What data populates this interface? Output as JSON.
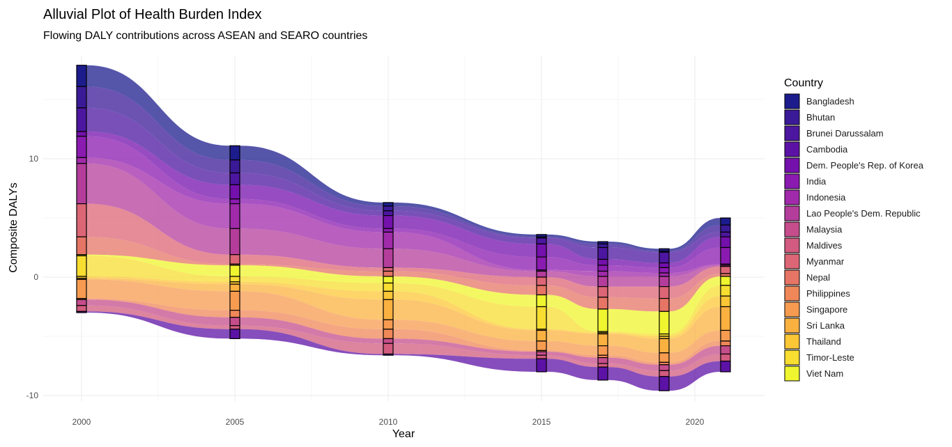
{
  "chart_data": {
    "type": "alluvial",
    "title": "Alluvial Plot of Health Burden Index",
    "subtitle": "Flowing DALY contributions across ASEAN and SEARO countries",
    "xlabel": "Year",
    "ylabel": "Composite DALYs",
    "x_ticks": [
      "2000",
      "2005",
      "2010",
      "2015",
      "2020"
    ],
    "x_tick_values": [
      2000,
      2005,
      2010,
      2015,
      2020
    ],
    "y_ticks": [
      "-10",
      "0",
      "10"
    ],
    "y_tick_values": [
      -10,
      0,
      10
    ],
    "xlim": [
      1998.7,
      2022.2
    ],
    "ylim": [
      -10.5,
      18.5
    ],
    "grid": true,
    "legend": {
      "title": "Country",
      "position": "right",
      "entries": [
        "Bangladesh",
        "Bhutan",
        "Brunei Darussalam",
        "Cambodia",
        "Dem. People's Rep. of Korea",
        "India",
        "Indonesia",
        "Lao People's Dem. Republic",
        "Malaysia",
        "Maldives",
        "Myanmar",
        "Nepal",
        "Philippines",
        "Singapore",
        "Sri Lanka",
        "Thailand",
        "Timor-Leste",
        "Viet Nam"
      ],
      "colors": [
        "#1c1c8d",
        "#3b1a98",
        "#4c16a0",
        "#5d12a6",
        "#7410ac",
        "#8a1ab0",
        "#a02aaa",
        "#b43d9c",
        "#c64d8c",
        "#d25b7f",
        "#dc6675",
        "#e67565",
        "#f08758",
        "#f79b50",
        "#fbb140",
        "#fcc737",
        "#f7de30",
        "#eff52e"
      ]
    },
    "years": [
      2000,
      2005,
      2010,
      2015,
      2017,
      2019,
      2021
    ],
    "stack_order_top_to_bottom": [
      "Bangladesh",
      "Bhutan",
      "Brunei Darussalam",
      "Dem. People's Rep. of Korea",
      "India",
      "Indonesia",
      "Lao People's Dem. Republic",
      "Myanmar",
      "Nepal",
      "Viet Nam",
      "Timor-Leste",
      "Thailand",
      "Sri Lanka",
      "Singapore",
      "Philippines",
      "Malaysia",
      "Maldives",
      "Cambodia"
    ],
    "stack_bottom": [
      -3.0,
      -5.2,
      -6.6,
      -8.0,
      -8.7,
      -9.6,
      -8.0
    ],
    "values_by_year": [
      [
        1.8,
        1.8,
        2.0,
        0.4,
        1.8,
        0.5,
        3.4,
        2.8,
        1.5,
        0.1,
        1.74,
        0.16,
        0.1,
        1.6,
        0.1,
        0.5,
        0.5,
        0.1
      ],
      [
        1.2,
        1.1,
        1.0,
        1.2,
        0.4,
        2.1,
        2.2,
        0.8,
        0.1,
        0.94,
        0.46,
        0.2,
        0.6,
        1.6,
        0.6,
        0.7,
        0.3,
        0.8
      ],
      [
        0.3,
        0.4,
        0.4,
        1.1,
        0.3,
        1.4,
        1.6,
        0.3,
        0.44,
        0.56,
        0.7,
        0.7,
        1.7,
        0.8,
        0.8,
        0.4,
        0.9,
        0.1
      ],
      [
        0.2,
        0.1,
        0.5,
        1.1,
        1.1,
        0.1,
        0.5,
        0.7,
        0.8,
        1.0,
        1.9,
        0.1,
        0.9,
        0.8,
        0.1,
        0.3,
        0.3,
        1.1
      ],
      [
        0.2,
        0.3,
        1.0,
        0.5,
        0.5,
        0.44,
        0.86,
        0.9,
        1.0,
        1.9,
        0.1,
        0.1,
        1.0,
        0.8,
        0.2,
        0.5,
        0.3,
        1.1
      ],
      [
        0.2,
        0.1,
        0.9,
        0.4,
        0.45,
        0.29,
        0.86,
        1.0,
        1.1,
        1.9,
        0.2,
        0.2,
        1.2,
        0.8,
        0.2,
        0.5,
        0.5,
        1.2
      ],
      [
        0.6,
        0.6,
        0.4,
        0.9,
        1.4,
        0.1,
        0.1,
        0.6,
        0.24,
        0.76,
        0.9,
        0.9,
        2.0,
        0.9,
        0.4,
        0.7,
        0.6,
        0.9
      ]
    ]
  }
}
